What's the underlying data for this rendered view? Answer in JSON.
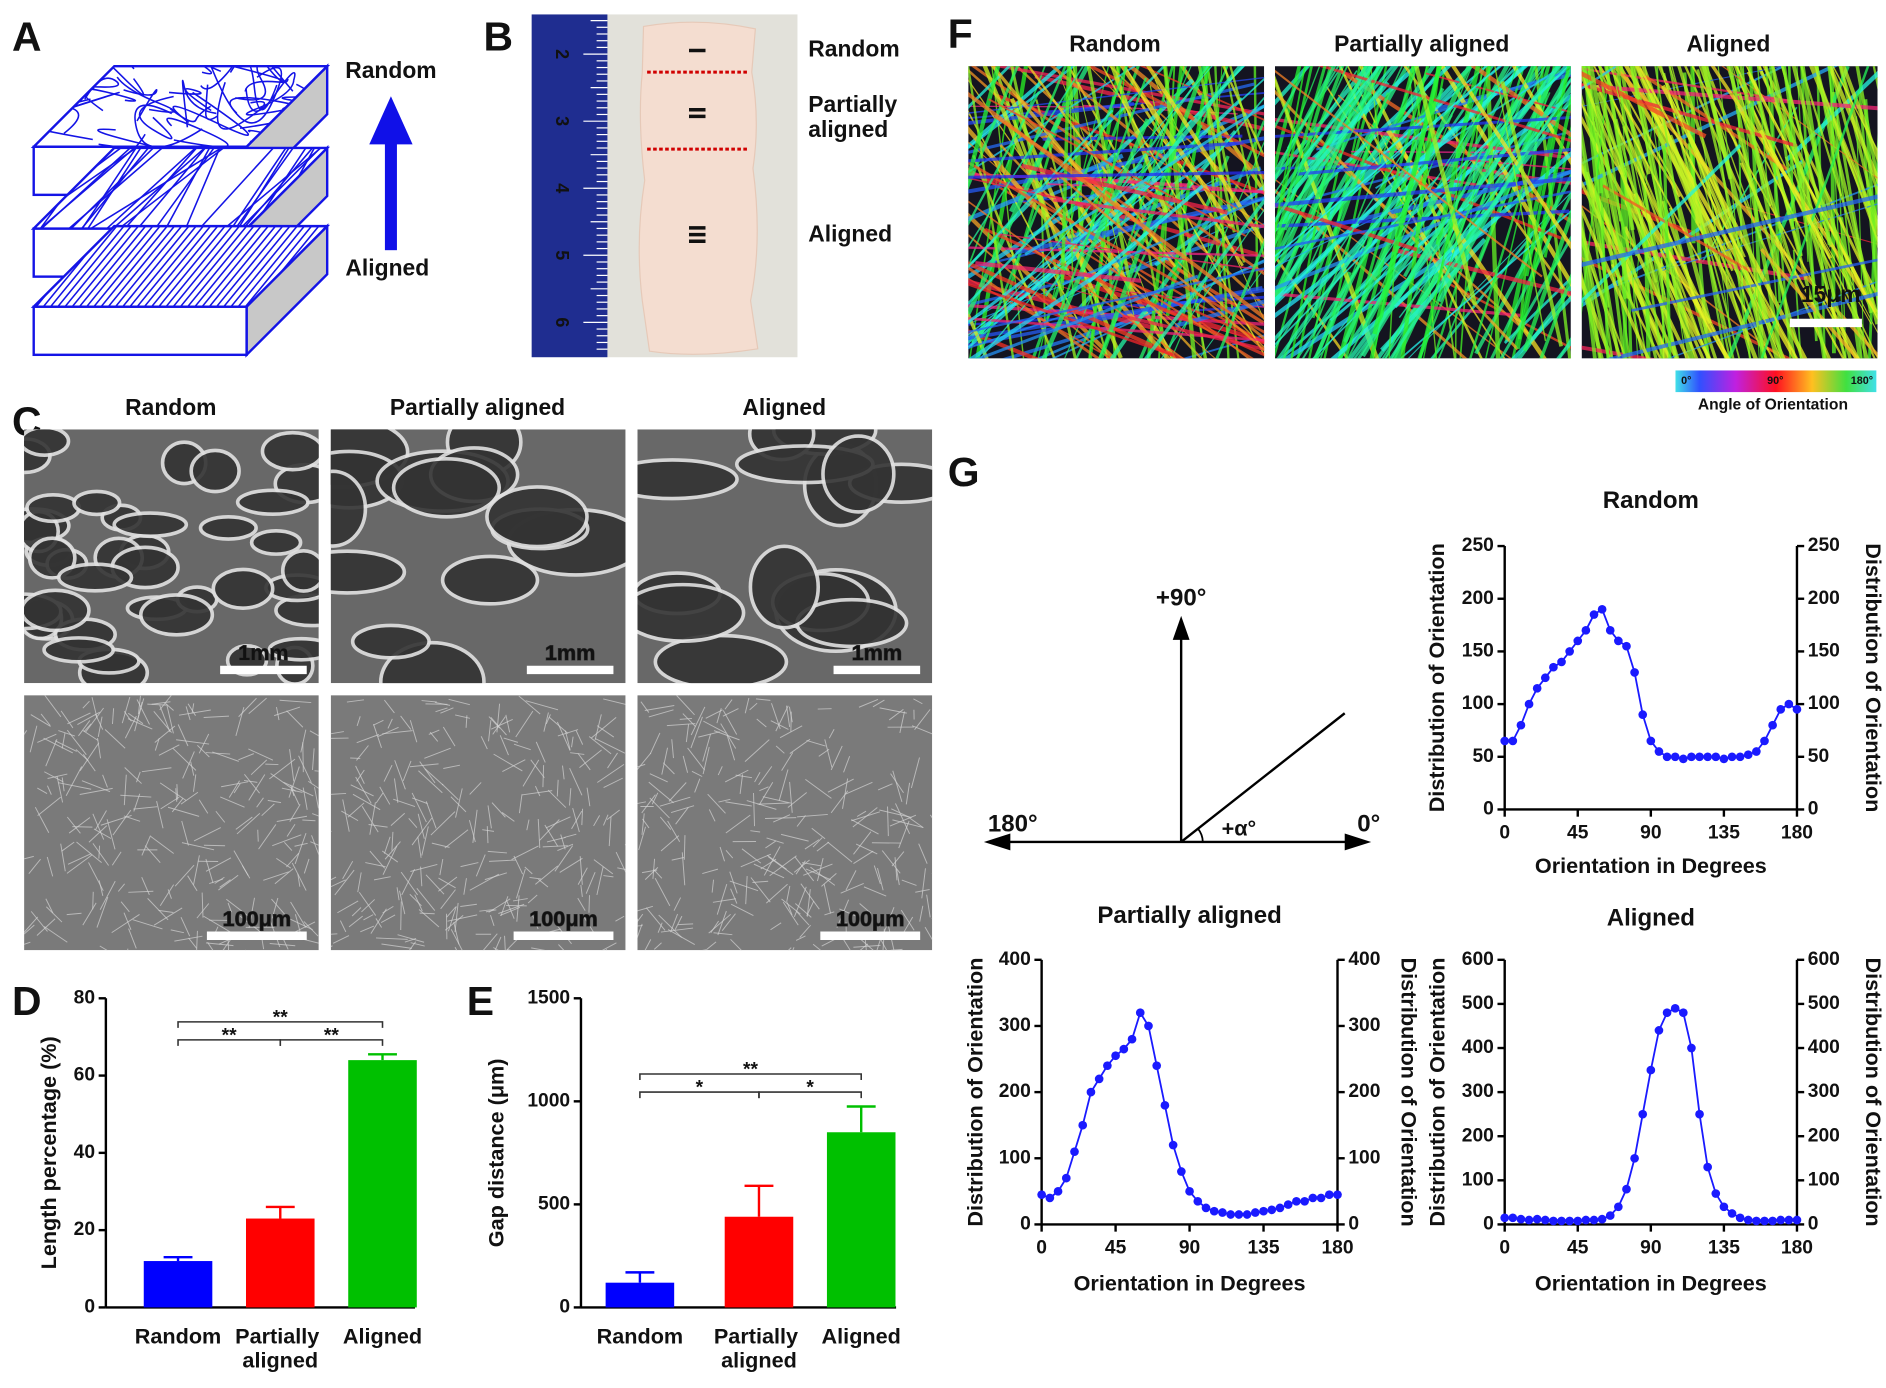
{
  "panel_labels": [
    "A",
    "B",
    "C",
    "D",
    "E",
    "F",
    "G"
  ],
  "panel_a": {
    "top": "Random",
    "bottom": "Aligned"
  },
  "panel_b": {
    "ruler": [
      2,
      3,
      4,
      5,
      6
    ],
    "zones": [
      {
        "mark": "I",
        "label": "Random"
      },
      {
        "mark": "II",
        "label": "Partially aligned"
      },
      {
        "mark": "III",
        "label": "Aligned"
      }
    ]
  },
  "panel_c": {
    "columns": [
      "Random",
      "Partially aligned",
      "Aligned"
    ],
    "scale_bars": [
      "1mm",
      "100μm"
    ]
  },
  "panel_f": {
    "columns": [
      "Random",
      "Partially aligned",
      "Aligned"
    ],
    "scale_bar": "15μm",
    "colorbar": {
      "ticks": [
        "0°",
        "90°",
        "180°"
      ],
      "label": "Angle of Orientation"
    }
  },
  "panel_g_diagram": {
    "up": "+90°",
    "left": "180°",
    "right": "0°",
    "angle": "+α°"
  },
  "chart_data": [
    {
      "type": "bar",
      "categories": [
        "Random",
        "Partially aligned",
        "Aligned"
      ],
      "values": [
        12,
        23,
        64
      ],
      "errors": [
        1,
        3,
        1.5
      ],
      "colors": [
        "#0000ff",
        "#ff0000",
        "#00c000"
      ],
      "ylabel": "Length percentage (%)",
      "ylim": [
        0,
        80
      ],
      "yticks": [
        0,
        20,
        40,
        60,
        80
      ],
      "significance": [
        {
          "from": 0,
          "to": 2,
          "label": "**"
        },
        {
          "from": 0,
          "to": 1,
          "label": "**"
        },
        {
          "from": 1,
          "to": 2,
          "label": "**"
        }
      ]
    },
    {
      "type": "bar",
      "categories": [
        "Random",
        "Partially aligned",
        "Aligned"
      ],
      "values": [
        120,
        440,
        850
      ],
      "errors": [
        50,
        150,
        125
      ],
      "colors": [
        "#0000ff",
        "#ff0000",
        "#00c000"
      ],
      "ylabel": "Gap distance (μm)",
      "ylim": [
        0,
        1500
      ],
      "yticks": [
        0,
        500,
        1000,
        1500
      ],
      "significance": [
        {
          "from": 0,
          "to": 2,
          "label": "**"
        },
        {
          "from": 0,
          "to": 1,
          "label": "*"
        },
        {
          "from": 1,
          "to": 2,
          "label": "*"
        }
      ]
    },
    {
      "type": "line",
      "title": "Random",
      "xlabel": "Orientation in Degrees",
      "ylabel": "Distribution of Orientation",
      "y2label": "Distribution of Orientation",
      "color": "#1a1aff",
      "x": [
        0,
        5,
        10,
        15,
        20,
        25,
        30,
        35,
        40,
        45,
        50,
        55,
        60,
        65,
        70,
        75,
        80,
        85,
        90,
        95,
        100,
        105,
        110,
        115,
        120,
        125,
        130,
        135,
        140,
        145,
        150,
        155,
        160,
        165,
        170,
        175,
        180
      ],
      "values": [
        65,
        65,
        80,
        100,
        115,
        125,
        135,
        140,
        150,
        160,
        170,
        185,
        190,
        170,
        160,
        155,
        130,
        90,
        65,
        55,
        50,
        50,
        48,
        50,
        50,
        50,
        50,
        48,
        50,
        50,
        52,
        55,
        65,
        80,
        95,
        100,
        95
      ],
      "xlim": [
        0,
        180
      ],
      "xticks": [
        0,
        45,
        90,
        135,
        180
      ],
      "ylim": [
        0,
        250
      ],
      "yticks": [
        0,
        50,
        100,
        150,
        200,
        250
      ],
      "y2lim": [
        0,
        250
      ],
      "y2ticks": [
        0,
        50,
        100,
        150,
        200,
        250
      ]
    },
    {
      "type": "line",
      "title": "Partially aligned",
      "xlabel": "Orientation in Degrees",
      "ylabel": "Distribution of Orientation",
      "y2label": "Distribution of Orientation",
      "color": "#1a1aff",
      "x": [
        0,
        5,
        10,
        15,
        20,
        25,
        30,
        35,
        40,
        45,
        50,
        55,
        60,
        65,
        70,
        75,
        80,
        85,
        90,
        95,
        100,
        105,
        110,
        115,
        120,
        125,
        130,
        135,
        140,
        145,
        150,
        155,
        160,
        165,
        170,
        175,
        180
      ],
      "values": [
        45,
        40,
        50,
        70,
        110,
        150,
        200,
        220,
        240,
        255,
        265,
        280,
        320,
        300,
        240,
        180,
        120,
        80,
        50,
        35,
        25,
        20,
        18,
        15,
        15,
        15,
        18,
        20,
        22,
        25,
        30,
        35,
        35,
        40,
        40,
        45,
        45
      ],
      "xlim": [
        0,
        180
      ],
      "xticks": [
        0,
        45,
        90,
        135,
        180
      ],
      "ylim": [
        0,
        400
      ],
      "yticks": [
        0,
        100,
        200,
        300,
        400
      ],
      "y2lim": [
        0,
        400
      ],
      "y2ticks": [
        0,
        100,
        200,
        300,
        400
      ]
    },
    {
      "type": "line",
      "title": "Aligned",
      "xlabel": "Orientation in Degrees",
      "ylabel": "Distribution of Orientation",
      "y2label": "Distribution of Orientation",
      "color": "#1a1aff",
      "x": [
        0,
        5,
        10,
        15,
        20,
        25,
        30,
        35,
        40,
        45,
        50,
        55,
        60,
        65,
        70,
        75,
        80,
        85,
        90,
        95,
        100,
        105,
        110,
        115,
        120,
        125,
        130,
        135,
        140,
        145,
        150,
        155,
        160,
        165,
        170,
        175,
        180
      ],
      "values": [
        15,
        15,
        12,
        10,
        12,
        10,
        8,
        8,
        8,
        8,
        10,
        10,
        12,
        20,
        40,
        80,
        150,
        250,
        350,
        440,
        480,
        490,
        480,
        400,
        250,
        130,
        70,
        40,
        25,
        15,
        10,
        8,
        8,
        8,
        10,
        10,
        10
      ],
      "xlim": [
        0,
        180
      ],
      "xticks": [
        0,
        45,
        90,
        135,
        180
      ],
      "ylim": [
        0,
        600
      ],
      "yticks": [
        0,
        100,
        200,
        300,
        400,
        500,
        600
      ],
      "y2lim": [
        0,
        600
      ],
      "y2ticks": [
        0,
        100,
        200,
        300,
        400,
        500,
        600
      ]
    }
  ]
}
